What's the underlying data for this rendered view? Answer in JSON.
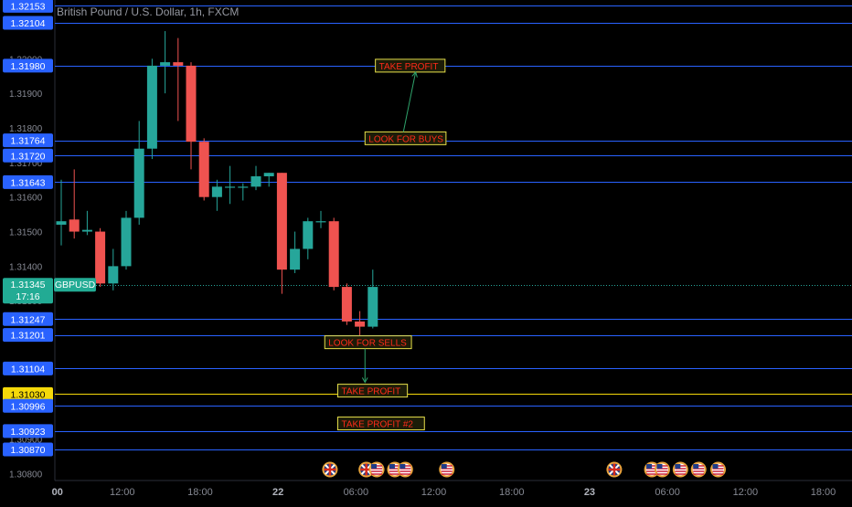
{
  "header": {
    "title": "British Pound / U.S. Dollar, 1h, FXCM"
  },
  "chart_data": {
    "type": "candlestick",
    "symbol": "GBPUSD",
    "current_price": "1.31345",
    "countdown": "17:16",
    "ylim": [
      1.3078,
      1.3217
    ],
    "y_ticks": [
      "1.32000",
      "1.31900",
      "1.31800",
      "1.31700",
      "1.31600",
      "1.31500",
      "1.31400",
      "1.31300",
      "1.31200",
      "1.31100",
      "1.31000",
      "1.30900",
      "1.30800"
    ],
    "x_ticks": [
      {
        "label": "00",
        "i": -0.3
      },
      {
        "label": "12:00",
        "i": 4.7
      },
      {
        "label": "18:00",
        "i": 10.7
      },
      {
        "label": "22",
        "i": 16.7
      },
      {
        "label": "06:00",
        "i": 22.7
      },
      {
        "label": "12:00",
        "i": 28.7
      },
      {
        "label": "18:00",
        "i": 34.7
      },
      {
        "label": "23",
        "i": 40.7
      },
      {
        "label": "06:00",
        "i": 46.7
      },
      {
        "label": "12:00",
        "i": 52.7
      },
      {
        "label": "18:00",
        "i": 58.7
      }
    ],
    "candles": [
      {
        "o": 1.3152,
        "h": 1.3165,
        "l": 1.3146,
        "c": 1.3153
      },
      {
        "o": 1.31535,
        "h": 1.3168,
        "l": 1.3148,
        "c": 1.315
      },
      {
        "o": 1.315,
        "h": 1.3156,
        "l": 1.3149,
        "c": 1.31505
      },
      {
        "o": 1.315,
        "h": 1.3151,
        "l": 1.3134,
        "c": 1.3135
      },
      {
        "o": 1.3135,
        "h": 1.3145,
        "l": 1.3133,
        "c": 1.314
      },
      {
        "o": 1.314,
        "h": 1.3156,
        "l": 1.3139,
        "c": 1.3154
      },
      {
        "o": 1.3154,
        "h": 1.3182,
        "l": 1.3152,
        "c": 1.3174
      },
      {
        "o": 1.3174,
        "h": 1.32,
        "l": 1.3171,
        "c": 1.3198
      },
      {
        "o": 1.3198,
        "h": 1.3208,
        "l": 1.319,
        "c": 1.3199
      },
      {
        "o": 1.3199,
        "h": 1.3206,
        "l": 1.3182,
        "c": 1.3198
      },
      {
        "o": 1.3198,
        "h": 1.3199,
        "l": 1.3168,
        "c": 1.3176
      },
      {
        "o": 1.3176,
        "h": 1.3177,
        "l": 1.3159,
        "c": 1.316
      },
      {
        "o": 1.316,
        "h": 1.3165,
        "l": 1.3156,
        "c": 1.3163
      },
      {
        "o": 1.3163,
        "h": 1.3169,
        "l": 1.3158,
        "c": 1.3163
      },
      {
        "o": 1.3163,
        "h": 1.3164,
        "l": 1.3159,
        "c": 1.3163
      },
      {
        "o": 1.3163,
        "h": 1.3169,
        "l": 1.3162,
        "c": 1.3166
      },
      {
        "o": 1.3166,
        "h": 1.3167,
        "l": 1.3163,
        "c": 1.3167
      },
      {
        "o": 1.3167,
        "h": 1.3167,
        "l": 1.3132,
        "c": 1.3139
      },
      {
        "o": 1.3139,
        "h": 1.315,
        "l": 1.3138,
        "c": 1.3145
      },
      {
        "o": 1.3145,
        "h": 1.3154,
        "l": 1.3142,
        "c": 1.3153
      },
      {
        "o": 1.3153,
        "h": 1.3156,
        "l": 1.3151,
        "c": 1.3153
      },
      {
        "o": 1.3153,
        "h": 1.3154,
        "l": 1.3133,
        "c": 1.3134
      },
      {
        "o": 1.3134,
        "h": 1.3135,
        "l": 1.3123,
        "c": 1.3124
      },
      {
        "o": 1.3124,
        "h": 1.3127,
        "l": 1.312,
        "c": 1.31225
      },
      {
        "o": 1.31225,
        "h": 1.3139,
        "l": 1.3122,
        "c": 1.3134
      }
    ],
    "levels": [
      {
        "price": "1.32153",
        "color": "#2962ff"
      },
      {
        "price": "1.32104",
        "color": "#2962ff"
      },
      {
        "price": "1.31980",
        "color": "#2962ff"
      },
      {
        "price": "1.31764",
        "color": "#2962ff"
      },
      {
        "price": "1.31720",
        "color": "#2962ff"
      },
      {
        "price": "1.31643",
        "color": "#2962ff"
      },
      {
        "price": "1.31247",
        "color": "#2962ff"
      },
      {
        "price": "1.31201",
        "color": "#2962ff"
      },
      {
        "price": "1.31104",
        "color": "#2962ff"
      },
      {
        "price": "1.31030",
        "color": "#f5d90a"
      },
      {
        "price": "1.30996",
        "color": "#2962ff"
      },
      {
        "price": "1.30923",
        "color": "#2962ff"
      },
      {
        "price": "1.30870",
        "color": "#2962ff"
      }
    ],
    "annotations": [
      {
        "text": "TAKE PROFIT",
        "i": 24.2,
        "price": 1.3198
      },
      {
        "text": "LOOK FOR BUYS",
        "i": 23.4,
        "price": 1.3177
      },
      {
        "text": "LOOK FOR SELLS",
        "i": 20.3,
        "price": 1.3118
      },
      {
        "text": "TAKE PROFIT",
        "i": 21.3,
        "price": 1.3104
      },
      {
        "text": "TAKE PROFIT #2",
        "i": 21.3,
        "price": 1.30945
      }
    ],
    "events": [
      {
        "flag": "uk",
        "i": 20.7
      },
      {
        "flag": "uk",
        "i": 23.5
      },
      {
        "flag": "us",
        "i": 24.3
      },
      {
        "flag": "us",
        "i": 25.7
      },
      {
        "flag": "us",
        "i": 26.5
      },
      {
        "flag": "us",
        "i": 29.7
      },
      {
        "flag": "uk",
        "i": 42.6
      },
      {
        "flag": "us",
        "i": 45.5
      },
      {
        "flag": "us",
        "i": 46.3
      },
      {
        "flag": "us",
        "i": 47.7
      },
      {
        "flag": "us",
        "i": 49.1
      },
      {
        "flag": "us",
        "i": 50.6
      }
    ],
    "colors": {
      "up": "#26a69a",
      "down": "#ef5350",
      "level": "#2962ff",
      "highlight": "#f5d90a",
      "annotation_text": "#ff2a1a",
      "annotation_border": "#e7e04a",
      "arrow": "#2fa36b",
      "price_badge": "#22ab94"
    }
  }
}
